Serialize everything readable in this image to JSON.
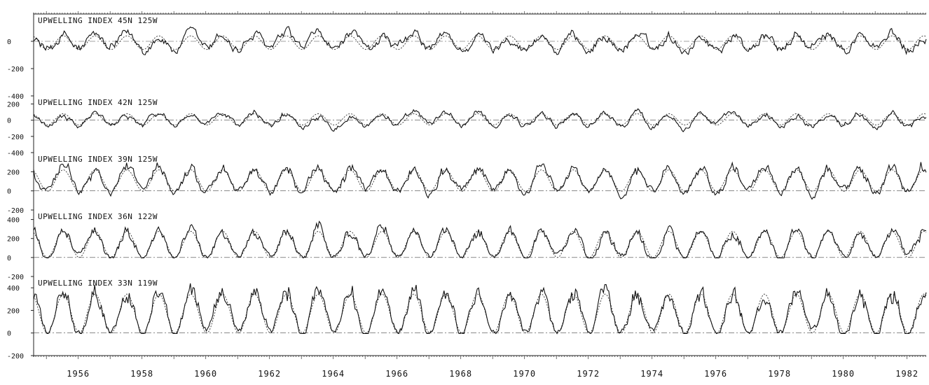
{
  "chart_data": {
    "type": "line",
    "x_range": [
      1954.6,
      1982.6
    ],
    "x_ticks": [
      "1956",
      "1958",
      "1960",
      "1962",
      "1964",
      "1966",
      "1968",
      "1970",
      "1972",
      "1974",
      "1976",
      "1978",
      "1980",
      "1982"
    ],
    "grid": false,
    "legend": "none",
    "panels": [
      {
        "title": "UPWELLING INDEX  45N 125W",
        "ylim": [
          -400,
          200
        ],
        "yticks": [
          "0",
          "-200",
          "-400"
        ],
        "mean_peak": 40,
        "mean_trough": -60,
        "noise": 55,
        "clip_low": false
      },
      {
        "title": "UPWELLING INDEX  42N 125W",
        "ylim": [
          -400,
          300
        ],
        "yticks": [
          "200",
          "0",
          "-200",
          "-400"
        ],
        "mean_peak": 80,
        "mean_trough": -60,
        "noise": 55,
        "clip_low": false
      },
      {
        "title": "UPWELLING INDEX  39N 125W",
        "ylim": [
          -200,
          400
        ],
        "yticks": [
          "200",
          "0",
          "-200"
        ],
        "mean_peak": 220,
        "mean_trough": -5,
        "noise": 65,
        "clip_low": false
      },
      {
        "title": "UPWELLING INDEX  36N 122W",
        "ylim": [
          -200,
          500
        ],
        "yticks": [
          "400",
          "200",
          "0",
          "-200"
        ],
        "mean_peak": 240,
        "mean_trough": 0,
        "noise": 55,
        "clip_low": true
      },
      {
        "title": "UPWELLING INDEX  33N 119W",
        "ylim": [
          -200,
          500
        ],
        "yticks": [
          "400",
          "200",
          "0",
          "-200"
        ],
        "mean_peak": 300,
        "mean_trough": 0,
        "noise": 55,
        "clip_low": true
      }
    ]
  }
}
